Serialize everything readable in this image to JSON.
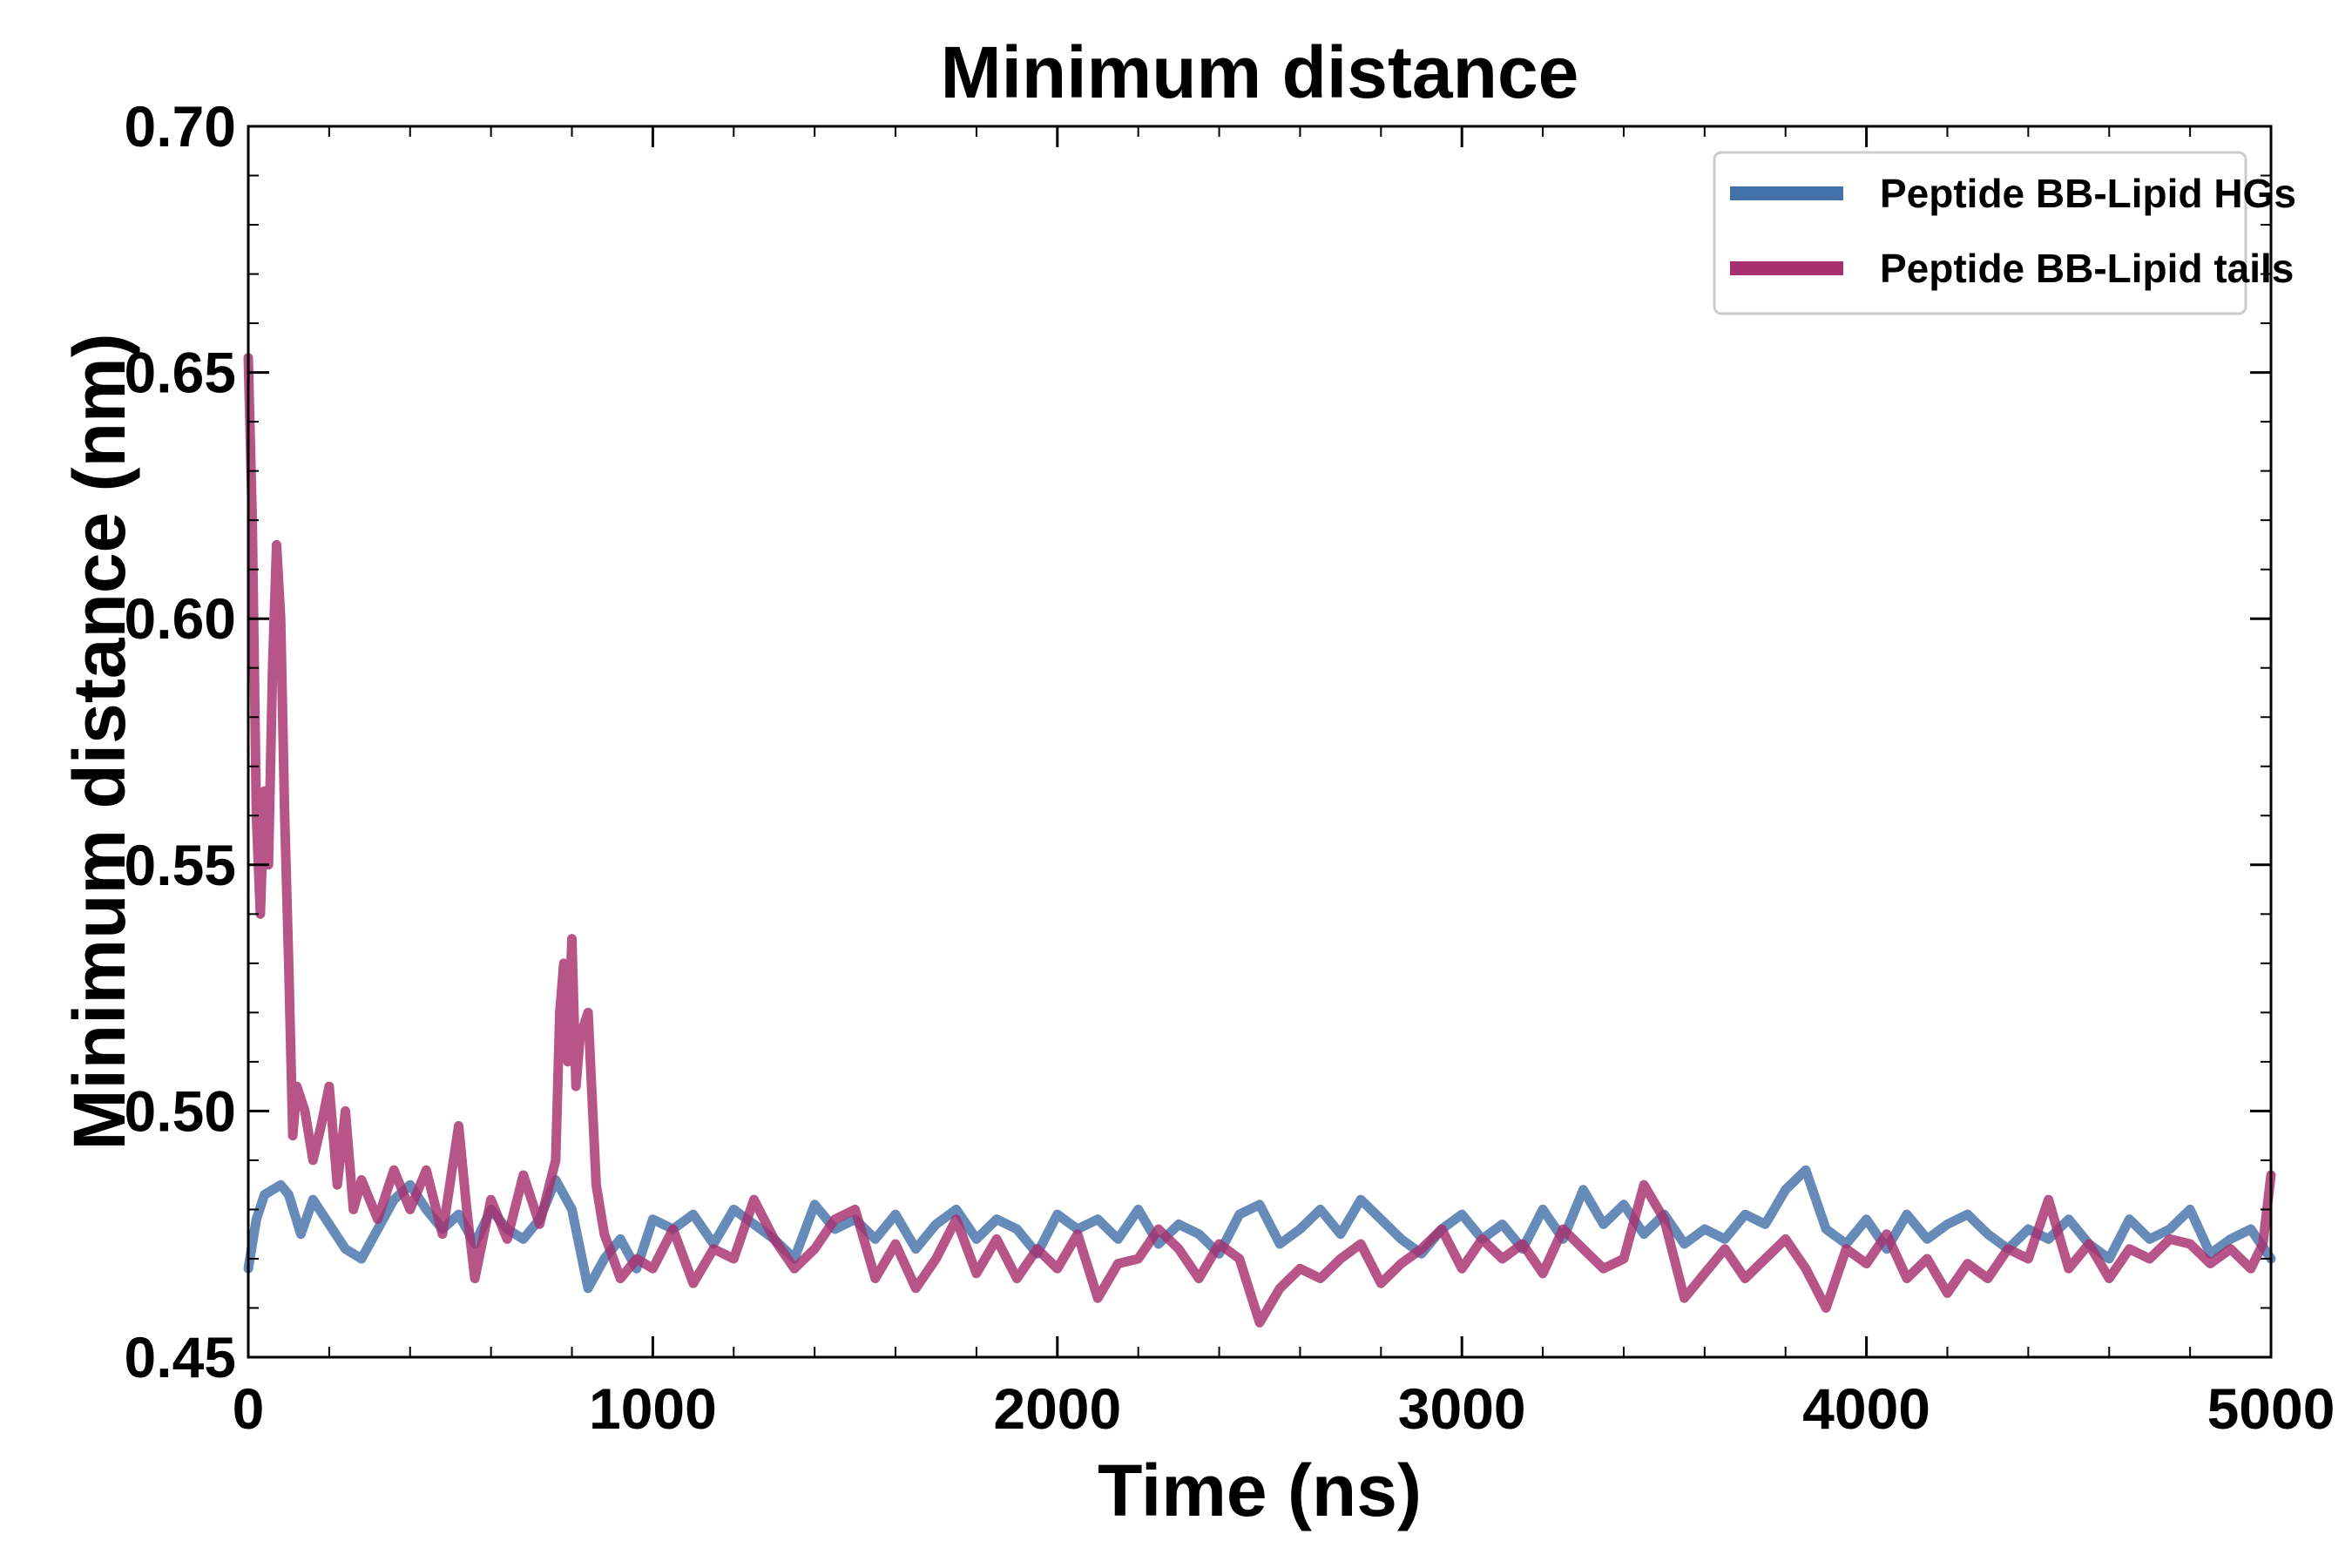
{
  "chart_data": {
    "type": "line",
    "title": "Minimum distance",
    "xlabel": "Time (ns)",
    "ylabel": "Minimum distance (nm)",
    "xlim": [
      0,
      5000
    ],
    "ylim": [
      0.45,
      0.7
    ],
    "x_ticks": [
      0,
      1000,
      2000,
      3000,
      4000,
      5000
    ],
    "x_tick_labels": [
      "0",
      "1000",
      "2000",
      "3000",
      "4000",
      "5000"
    ],
    "y_ticks": [
      0.45,
      0.5,
      0.55,
      0.6,
      0.65,
      0.7
    ],
    "y_tick_labels": [
      "0.45",
      "0.50",
      "0.55",
      "0.60",
      "0.65",
      "0.70"
    ],
    "x_minor_step": 200,
    "y_minor_step": 0.01,
    "grid": false,
    "legend_position": "top-right",
    "series": [
      {
        "name": "Peptide BB-Lipid HGs",
        "color": "#4472a8",
        "x": [
          0,
          20,
          40,
          60,
          80,
          100,
          130,
          160,
          200,
          240,
          280,
          320,
          360,
          400,
          440,
          480,
          520,
          560,
          600,
          640,
          680,
          720,
          760,
          800,
          840,
          880,
          920,
          960,
          1000,
          1050,
          1100,
          1150,
          1200,
          1250,
          1300,
          1350,
          1400,
          1450,
          1500,
          1550,
          1600,
          1650,
          1700,
          1750,
          1800,
          1850,
          1900,
          1950,
          2000,
          2050,
          2100,
          2150,
          2200,
          2250,
          2300,
          2350,
          2400,
          2450,
          2500,
          2550,
          2600,
          2650,
          2700,
          2750,
          2800,
          2850,
          2900,
          2950,
          3000,
          3050,
          3100,
          3150,
          3200,
          3250,
          3300,
          3350,
          3400,
          3450,
          3500,
          3550,
          3600,
          3650,
          3700,
          3750,
          3800,
          3850,
          3900,
          3950,
          4000,
          4050,
          4100,
          4150,
          4200,
          4250,
          4300,
          4350,
          4400,
          4450,
          4500,
          4550,
          4600,
          4650,
          4700,
          4750,
          4800,
          4850,
          4900,
          4950,
          5000
        ],
        "values": [
          0.468,
          0.478,
          0.483,
          0.484,
          0.485,
          0.483,
          0.475,
          0.482,
          0.477,
          0.472,
          0.47,
          0.476,
          0.482,
          0.485,
          0.48,
          0.476,
          0.479,
          0.473,
          0.48,
          0.476,
          0.474,
          0.478,
          0.486,
          0.48,
          0.464,
          0.47,
          0.474,
          0.468,
          0.478,
          0.476,
          0.479,
          0.473,
          0.48,
          0.477,
          0.474,
          0.47,
          0.481,
          0.476,
          0.478,
          0.474,
          0.479,
          0.472,
          0.477,
          0.48,
          0.474,
          0.478,
          0.476,
          0.471,
          0.479,
          0.476,
          0.478,
          0.474,
          0.48,
          0.473,
          0.477,
          0.475,
          0.471,
          0.479,
          0.481,
          0.473,
          0.476,
          0.48,
          0.475,
          0.482,
          0.478,
          0.474,
          0.471,
          0.476,
          0.479,
          0.474,
          0.477,
          0.472,
          0.48,
          0.474,
          0.484,
          0.477,
          0.481,
          0.475,
          0.479,
          0.473,
          0.476,
          0.474,
          0.479,
          0.477,
          0.484,
          0.488,
          0.476,
          0.473,
          0.478,
          0.472,
          0.479,
          0.474,
          0.477,
          0.479,
          0.475,
          0.472,
          0.476,
          0.474,
          0.478,
          0.473,
          0.47,
          0.478,
          0.474,
          0.476,
          0.48,
          0.471,
          0.474,
          0.476,
          0.47
        ]
      },
      {
        "name": "Peptide BB-Lipid tails",
        "color": "#a8306e",
        "x": [
          0,
          10,
          20,
          30,
          40,
          50,
          60,
          70,
          80,
          90,
          100,
          110,
          120,
          140,
          160,
          180,
          200,
          220,
          240,
          260,
          280,
          320,
          360,
          400,
          440,
          480,
          520,
          540,
          560,
          600,
          640,
          680,
          720,
          760,
          770,
          780,
          790,
          800,
          810,
          820,
          840,
          860,
          880,
          920,
          960,
          1000,
          1050,
          1100,
          1150,
          1200,
          1250,
          1300,
          1350,
          1400,
          1450,
          1500,
          1550,
          1600,
          1650,
          1700,
          1750,
          1800,
          1850,
          1900,
          1950,
          2000,
          2050,
          2100,
          2150,
          2200,
          2250,
          2300,
          2350,
          2400,
          2450,
          2500,
          2550,
          2600,
          2650,
          2700,
          2750,
          2800,
          2850,
          2900,
          2950,
          3000,
          3050,
          3100,
          3150,
          3200,
          3250,
          3300,
          3350,
          3400,
          3450,
          3500,
          3550,
          3600,
          3650,
          3700,
          3750,
          3800,
          3850,
          3900,
          3950,
          4000,
          4050,
          4100,
          4150,
          4200,
          4250,
          4300,
          4350,
          4400,
          4450,
          4500,
          4550,
          4600,
          4650,
          4700,
          4750,
          4800,
          4850,
          4900,
          4950,
          4980,
          5000
        ],
        "values": [
          0.653,
          0.62,
          0.56,
          0.54,
          0.565,
          0.55,
          0.59,
          0.615,
          0.6,
          0.56,
          0.53,
          0.495,
          0.505,
          0.5,
          0.49,
          0.497,
          0.505,
          0.485,
          0.5,
          0.48,
          0.486,
          0.478,
          0.488,
          0.48,
          0.488,
          0.475,
          0.497,
          0.48,
          0.466,
          0.482,
          0.474,
          0.487,
          0.477,
          0.49,
          0.52,
          0.53,
          0.51,
          0.535,
          0.505,
          0.515,
          0.52,
          0.485,
          0.475,
          0.466,
          0.47,
          0.468,
          0.476,
          0.465,
          0.472,
          0.47,
          0.482,
          0.474,
          0.468,
          0.472,
          0.478,
          0.48,
          0.466,
          0.473,
          0.464,
          0.47,
          0.478,
          0.467,
          0.474,
          0.466,
          0.472,
          0.468,
          0.475,
          0.462,
          0.469,
          0.47,
          0.476,
          0.472,
          0.466,
          0.473,
          0.47,
          0.457,
          0.464,
          0.468,
          0.466,
          0.47,
          0.473,
          0.465,
          0.469,
          0.472,
          0.476,
          0.468,
          0.474,
          0.47,
          0.473,
          0.467,
          0.476,
          0.472,
          0.468,
          0.47,
          0.485,
          0.478,
          0.462,
          0.467,
          0.472,
          0.466,
          0.47,
          0.474,
          0.468,
          0.46,
          0.472,
          0.469,
          0.475,
          0.466,
          0.47,
          0.463,
          0.469,
          0.466,
          0.472,
          0.47,
          0.482,
          0.468,
          0.473,
          0.466,
          0.472,
          0.47,
          0.474,
          0.473,
          0.469,
          0.472,
          0.468,
          0.473,
          0.487
        ]
      }
    ]
  }
}
